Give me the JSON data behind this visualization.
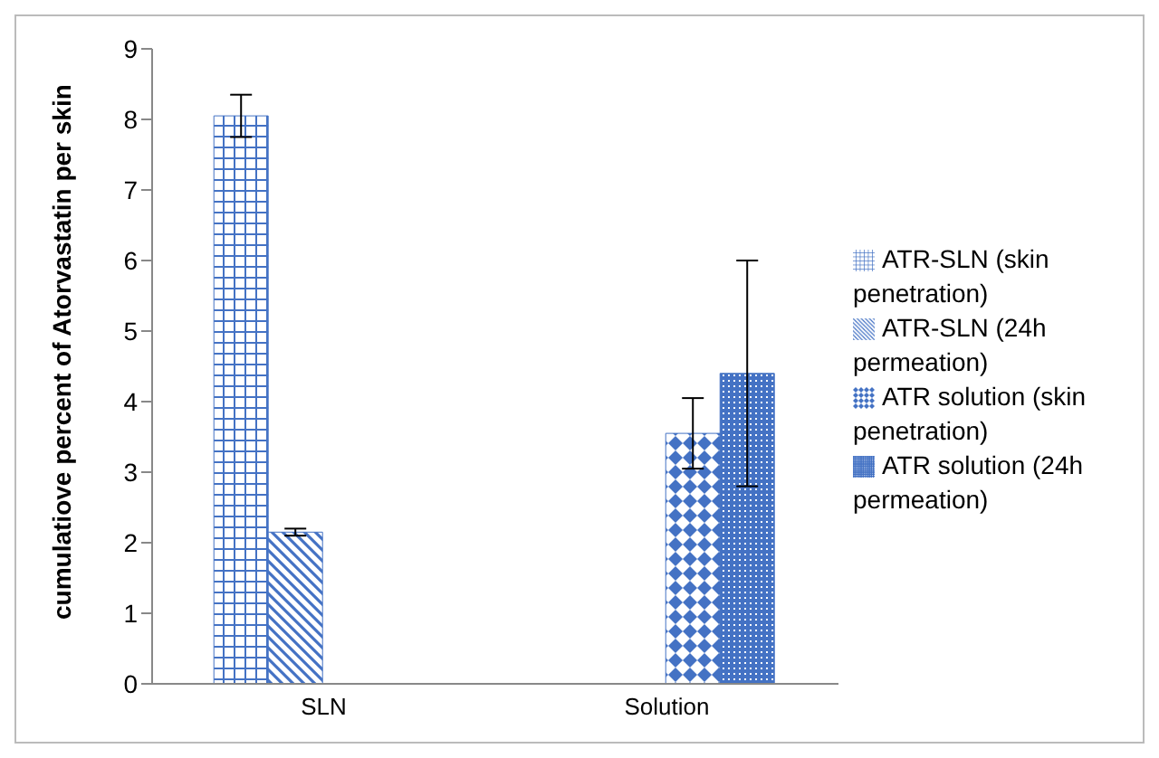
{
  "chart_data": {
    "type": "bar",
    "ylabel": "cumulatiove percent of Atorvastatin per skin",
    "categories": [
      "SLN",
      "Solution"
    ],
    "series": [
      {
        "name": "ATR-SLN (skin penetration)",
        "color": "#4472c4",
        "values": [
          8.05,
          null
        ],
        "errors": [
          0.3,
          null
        ]
      },
      {
        "name": "ATR-SLN (24h permeation)",
        "color": "#4472c4",
        "values": [
          2.15,
          null
        ],
        "errors": [
          0.05,
          null
        ]
      },
      {
        "name": "ATR solution (skin penetration)",
        "color": "#4472c4",
        "values": [
          null,
          3.55
        ],
        "errors": [
          null,
          0.5
        ]
      },
      {
        "name": "ATR solution (24h permeation)",
        "color": "#4472c4",
        "values": [
          null,
          4.4
        ],
        "errors": [
          null,
          1.6
        ]
      }
    ],
    "ylim": [
      0,
      9
    ],
    "yticks": [
      0,
      1,
      2,
      3,
      4,
      5,
      6,
      7,
      8,
      9
    ],
    "grid": false,
    "legend": "right"
  }
}
